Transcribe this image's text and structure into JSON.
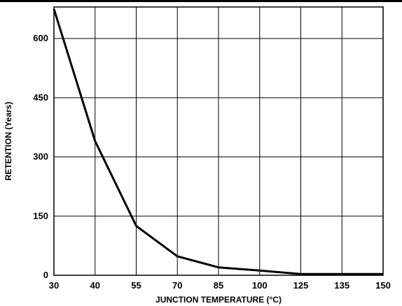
{
  "chart_data": {
    "type": "line",
    "title": "",
    "xlabel": "JUNCTION TEMPERATURE (°C)",
    "ylabel": "RETENTION (Years)",
    "x_categories": [
      "30",
      "40",
      "55",
      "70",
      "85",
      "100",
      "125",
      "135",
      "150"
    ],
    "y_ticks": [
      "0",
      "150",
      "300",
      "450",
      "600"
    ],
    "ylim": [
      0,
      680
    ],
    "grid": true,
    "series": [
      {
        "name": "",
        "x": [
          "30",
          "40",
          "55",
          "70",
          "85",
          "100",
          "125",
          "135",
          "150"
        ],
        "y": [
          675,
          340,
          125,
          48,
          20,
          12,
          3,
          3,
          3
        ]
      }
    ]
  },
  "colors": {
    "line": "#000000",
    "grid": "#000000",
    "background": "#ffffff"
  }
}
